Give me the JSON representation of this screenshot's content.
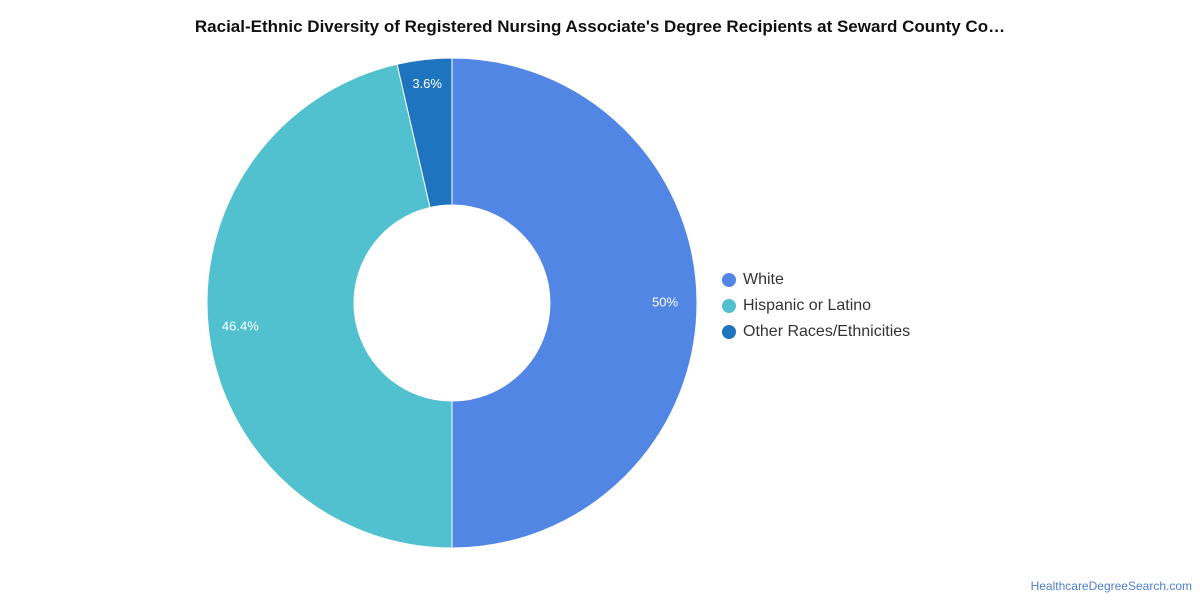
{
  "chart_data": {
    "type": "pie",
    "variant": "donut",
    "title": "Racial-Ethnic Diversity of Registered Nursing Associate's Degree Recipients at Seward County Co…",
    "slices": [
      {
        "label": "White",
        "value": 50,
        "display": "50%",
        "color": "#5286e4"
      },
      {
        "label": "Hispanic or Latino",
        "value": 46.4,
        "display": "46.4%",
        "color": "#51c1cf"
      },
      {
        "label": "Other Races/Ethnicities",
        "value": 3.6,
        "display": "3.6%",
        "color": "#1f74c0"
      }
    ],
    "legend_position": "right"
  },
  "watermark": "HealthcareDegreeSearch.com"
}
